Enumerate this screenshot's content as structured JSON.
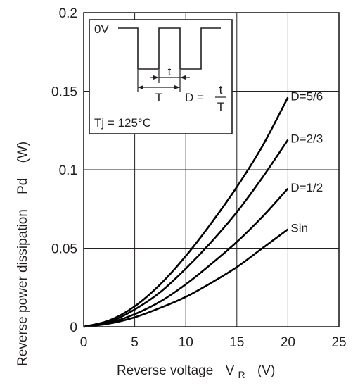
{
  "chart_data": {
    "type": "line",
    "title": "",
    "xlabel": "Reverse voltage",
    "xlabel_symbol": "V",
    "xlabel_subscript": "R",
    "xlabel_unit": "(V)",
    "ylabel": "Reverse power dissipation",
    "ylabel_symbol": "Pd",
    "ylabel_unit": "(W)",
    "xlim": [
      0,
      25
    ],
    "ylim": [
      0,
      0.2
    ],
    "x_ticks": [
      "0",
      "5",
      "10",
      "15",
      "20",
      "25"
    ],
    "y_ticks": [
      "0",
      "0.05",
      "0.1",
      "0.15",
      "0.2"
    ],
    "grid": true,
    "colors": {
      "line": "#000000",
      "grid": "#231f20"
    },
    "series": [
      {
        "name": "D=5/6",
        "x": [
          0,
          2.5,
          5,
          7.5,
          10,
          12.5,
          15,
          17.5,
          20
        ],
        "y": [
          0,
          0.004,
          0.013,
          0.027,
          0.045,
          0.066,
          0.089,
          0.115,
          0.146
        ]
      },
      {
        "name": "D=2/3",
        "x": [
          0,
          2.5,
          5,
          7.5,
          10,
          12.5,
          15,
          17.5,
          20
        ],
        "y": [
          0,
          0.003,
          0.011,
          0.022,
          0.037,
          0.054,
          0.073,
          0.095,
          0.119
        ]
      },
      {
        "name": "D=1/2",
        "x": [
          0,
          2.5,
          5,
          7.5,
          10,
          12.5,
          15,
          17.5,
          20
        ],
        "y": [
          0,
          0.0025,
          0.008,
          0.016,
          0.027,
          0.04,
          0.054,
          0.07,
          0.088
        ]
      },
      {
        "name": "Sin",
        "x": [
          0,
          2.5,
          5,
          7.5,
          10,
          12.5,
          15,
          17.5,
          20
        ],
        "y": [
          0,
          0.002,
          0.006,
          0.012,
          0.019,
          0.028,
          0.038,
          0.05,
          0.062
        ]
      }
    ],
    "inset": {
      "zero_label": "0V",
      "t_label": "t",
      "T_label": "T",
      "duty_label": "D =",
      "duty_numerator": "t",
      "duty_denominator": "T",
      "temp_label": "Tj = 125°C"
    }
  }
}
